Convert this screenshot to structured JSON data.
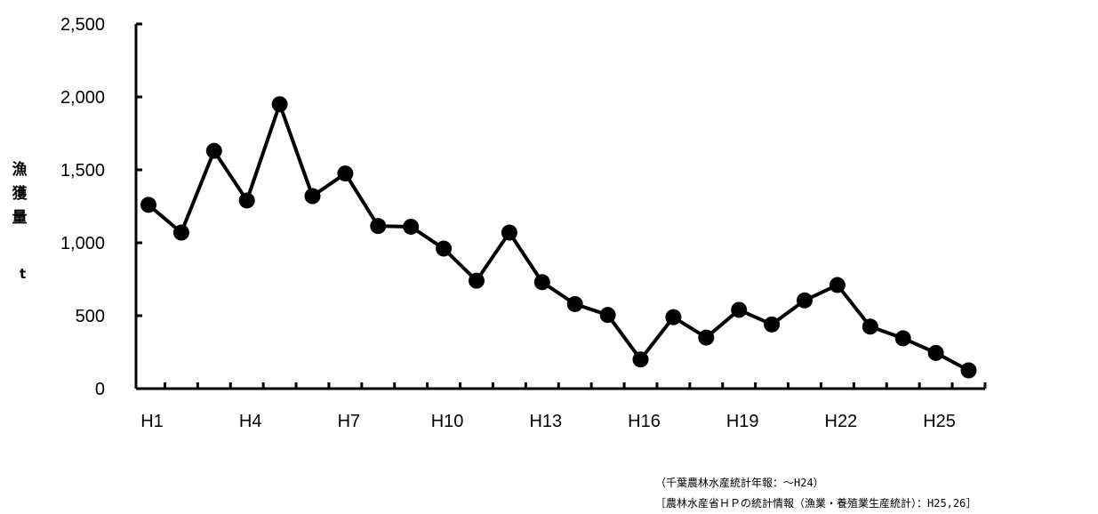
{
  "chart_data": {
    "type": "line",
    "ylabel": "漁獲量",
    "yunit": "t",
    "ylim": [
      0,
      2500
    ],
    "yticks": [
      "2,500",
      "2,000",
      "1,500",
      "1,000",
      "500",
      "0"
    ],
    "ytick_values": [
      2500,
      2000,
      1500,
      1000,
      500,
      0
    ],
    "x_categories": [
      "H1",
      "H2",
      "H3",
      "H4",
      "H5",
      "H6",
      "H7",
      "H8",
      "H9",
      "H10",
      "H11",
      "H12",
      "H13",
      "H14",
      "H15",
      "H16",
      "H17",
      "H18",
      "H19",
      "H20",
      "H21",
      "H22",
      "H23",
      "H24",
      "H25",
      "H26"
    ],
    "xtick_labels": [
      "H1",
      "H4",
      "H7",
      "H10",
      "H13",
      "H16",
      "H19",
      "H22",
      "H25"
    ],
    "series": [
      {
        "values": [
          1260,
          1070,
          1630,
          1290,
          1950,
          1320,
          1475,
          1115,
          1110,
          960,
          740,
          1070,
          730,
          580,
          505,
          200,
          490,
          350,
          540,
          440,
          605,
          710,
          425,
          345,
          245,
          125
        ]
      }
    ],
    "grid": false,
    "legend": "none",
    "line_color": "#000000",
    "marker_color": "#000000"
  },
  "source": {
    "line1": "（千葉農林水産統計年報：～H24）",
    "line2": "［農林水産省ＨＰの統計情報（漁業・養殖業生産統計）：H25,26］"
  }
}
